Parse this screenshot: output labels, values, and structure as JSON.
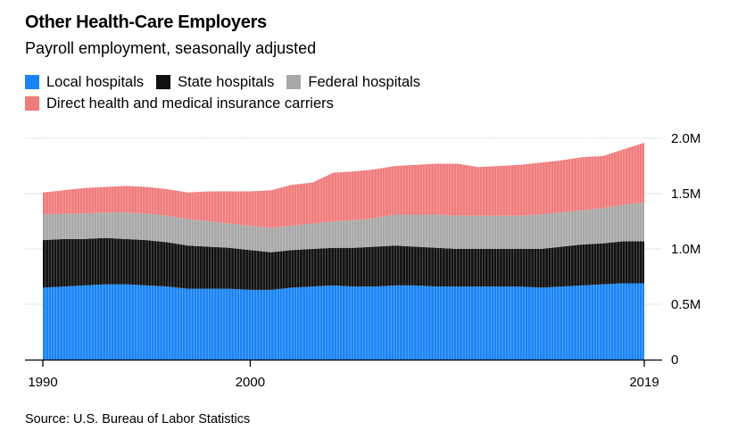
{
  "title": "Other Health-Care Employers",
  "subtitle": "Payroll employment, seasonally adjusted",
  "source": "Source: U.S. Bureau of Labor Statistics",
  "chart_data": {
    "type": "area",
    "stacked": true,
    "title": "Other Health-Care Employers",
    "subtitle": "Payroll employment, seasonally adjusted",
    "x_unit": "year",
    "x_ticks": [
      "1990",
      "2000",
      "2019"
    ],
    "y_ticks": [
      "0",
      "0.5M",
      "1.0M",
      "1.5M",
      "2.0M"
    ],
    "y_tick_values": [
      0,
      0.5,
      1.0,
      1.5,
      2.0
    ],
    "ylim": [
      0,
      2.0
    ],
    "y_unit": "millions",
    "xlim": [
      1990,
      2019
    ],
    "grid": true,
    "y_axis_position": "right",
    "legend_position": "top-left",
    "x": [
      1990,
      1991,
      1992,
      1993,
      1994,
      1995,
      1996,
      1997,
      1998,
      1999,
      2000,
      2001,
      2002,
      2003,
      2004,
      2005,
      2006,
      2007,
      2008,
      2009,
      2010,
      2011,
      2012,
      2013,
      2014,
      2015,
      2016,
      2017,
      2018,
      2019
    ],
    "series": [
      {
        "name": "Local hospitals",
        "color": "#1a84f5",
        "values": [
          0.65,
          0.66,
          0.67,
          0.68,
          0.68,
          0.67,
          0.66,
          0.64,
          0.64,
          0.64,
          0.63,
          0.63,
          0.65,
          0.66,
          0.67,
          0.66,
          0.66,
          0.67,
          0.67,
          0.66,
          0.66,
          0.66,
          0.66,
          0.66,
          0.65,
          0.66,
          0.67,
          0.68,
          0.69,
          0.69
        ]
      },
      {
        "name": "State hospitals",
        "color": "#111111",
        "values": [
          0.43,
          0.43,
          0.42,
          0.42,
          0.41,
          0.41,
          0.4,
          0.39,
          0.38,
          0.37,
          0.36,
          0.34,
          0.34,
          0.34,
          0.34,
          0.35,
          0.36,
          0.36,
          0.35,
          0.35,
          0.34,
          0.34,
          0.34,
          0.34,
          0.35,
          0.36,
          0.37,
          0.37,
          0.38,
          0.38
        ]
      },
      {
        "name": "Federal hospitals",
        "color": "#a8a8a8",
        "values": [
          0.23,
          0.23,
          0.23,
          0.23,
          0.24,
          0.24,
          0.24,
          0.24,
          0.23,
          0.22,
          0.22,
          0.22,
          0.22,
          0.23,
          0.24,
          0.25,
          0.26,
          0.28,
          0.29,
          0.3,
          0.3,
          0.3,
          0.3,
          0.3,
          0.31,
          0.31,
          0.31,
          0.32,
          0.33,
          0.35
        ]
      },
      {
        "name": "Direct health and medical insurance carriers",
        "color": "#f07b7b",
        "values": [
          0.2,
          0.21,
          0.23,
          0.23,
          0.24,
          0.24,
          0.24,
          0.24,
          0.27,
          0.29,
          0.31,
          0.34,
          0.37,
          0.37,
          0.44,
          0.44,
          0.44,
          0.44,
          0.45,
          0.46,
          0.47,
          0.44,
          0.45,
          0.46,
          0.47,
          0.47,
          0.48,
          0.47,
          0.5,
          0.54
        ]
      }
    ]
  }
}
